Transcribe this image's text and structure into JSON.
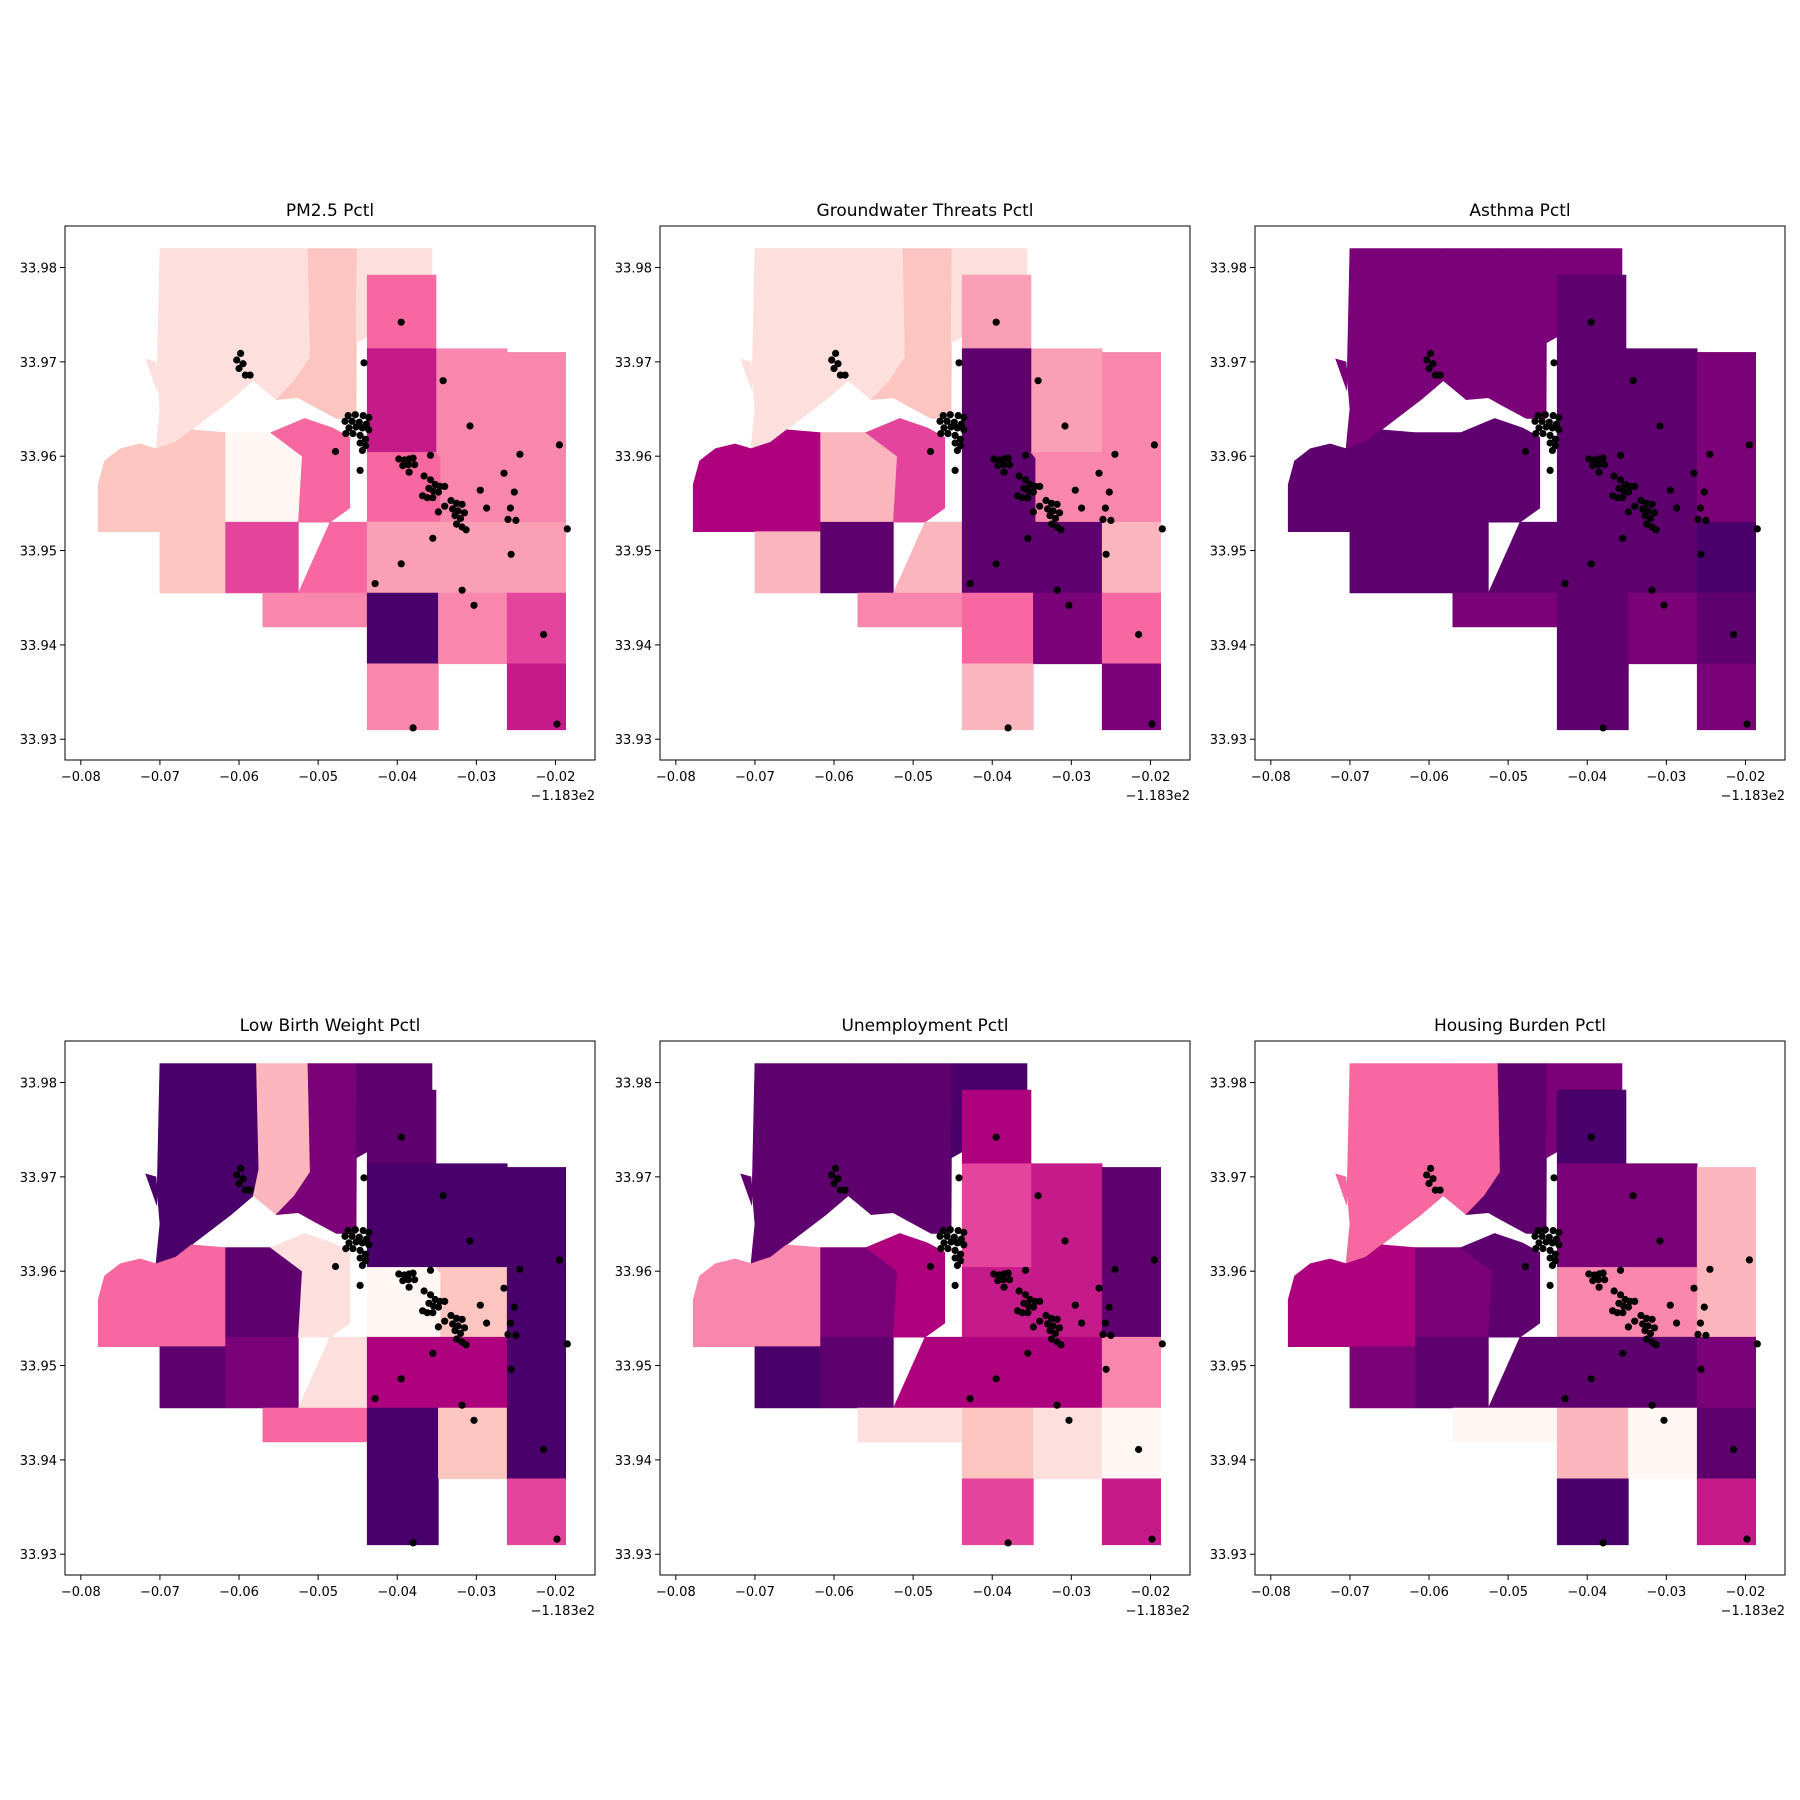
{
  "figure": {
    "panels": [
      {
        "id": "pm25",
        "title": "PM2.5 Pctl",
        "shades": [
          1,
          1,
          2,
          1,
          2,
          2,
          0,
          7,
          6,
          6,
          6,
          5,
          8,
          6,
          5,
          4,
          5,
          4,
          5,
          12,
          5,
          7,
          5,
          8
        ]
      },
      {
        "id": "groundwater",
        "title": "Groundwater Threats Pctl",
        "shades": [
          1,
          1,
          2,
          1,
          9,
          3,
          3,
          11,
          7,
          3,
          4,
          4,
          11,
          11,
          5,
          11,
          5,
          3,
          5,
          6,
          10,
          6,
          3,
          10
        ]
      },
      {
        "id": "asthma",
        "title": "Asthma Pctl",
        "shades": [
          10,
          10,
          10,
          10,
          11,
          11,
          11,
          11,
          11,
          11,
          11,
          11,
          11,
          11,
          11,
          11,
          10,
          12,
          10,
          11,
          10,
          11,
          11,
          10
        ]
      },
      {
        "id": "lowbirth",
        "title": "Low Birth Weight Pctl",
        "shades": [
          12,
          3,
          10,
          11,
          6,
          11,
          11,
          10,
          1,
          1,
          11,
          12,
          12,
          0,
          2,
          9,
          12,
          12,
          6,
          12,
          2,
          12,
          12,
          7
        ]
      },
      {
        "id": "unemployment",
        "title": "Unemployment Pctl",
        "shades": [
          11,
          11,
          11,
          12,
          5,
          12,
          10,
          11,
          9,
          9,
          9,
          8,
          7,
          8,
          8,
          9,
          11,
          5,
          1,
          2,
          1,
          0,
          7,
          8
        ]
      },
      {
        "id": "housing",
        "title": "Housing Burden Pctl",
        "shades": [
          6,
          6,
          11,
          10,
          9,
          10,
          10,
          11,
          11,
          11,
          12,
          10,
          10,
          5,
          5,
          11,
          3,
          10,
          0,
          3,
          0,
          11,
          12,
          8
        ]
      }
    ],
    "x_axis": {
      "ticks": [
        "−0.08",
        "−0.07",
        "−0.06",
        "−0.05",
        "−0.04",
        "−0.03",
        "−0.02"
      ],
      "offset_label": "−1.183e2"
    },
    "y_axis": {
      "ticks": [
        "33.98",
        "33.97",
        "33.96",
        "33.95",
        "33.94",
        "33.93"
      ]
    },
    "colormap": [
      "#fff7f3",
      "#fde0dd",
      "#fcc5c0",
      "#fbb5bc",
      "#fa9fb5",
      "#f987ad",
      "#f768a1",
      "#e4449c",
      "#c51b8a",
      "#ae017e",
      "#7a0177",
      "#5e006e",
      "#49006a"
    ],
    "marker_color": "#000000"
  },
  "chart_data": {
    "type": "choropleth-map",
    "titles": [
      "PM2.5 Pctl",
      "Groundwater Threats Pctl",
      "Asthma Pctl",
      "Low Birth Weight Pctl",
      "Unemployment Pctl",
      "Housing Burden Pctl"
    ],
    "x_offset": -118.3,
    "xlim": [
      -0.082,
      -0.015
    ],
    "ylim": [
      33.9278,
      33.9844
    ],
    "x_ticks": [
      -0.08,
      -0.07,
      -0.06,
      -0.05,
      -0.04,
      -0.03,
      -0.02
    ],
    "y_ticks": [
      33.98,
      33.97,
      33.96,
      33.95,
      33.94,
      33.93
    ],
    "points": [
      [
        -0.0395,
        33.9742
      ],
      [
        -0.0442,
        33.9699
      ],
      [
        -0.0342,
        33.968
      ],
      [
        -0.0308,
        33.9632
      ],
      [
        -0.0598,
        33.9709
      ],
      [
        -0.0603,
        33.9702
      ],
      [
        -0.0595,
        33.9698
      ],
      [
        -0.06,
        33.9693
      ],
      [
        -0.0592,
        33.9686
      ],
      [
        -0.0586,
        33.9686
      ],
      [
        -0.0462,
        33.9643
      ],
      [
        -0.0453,
        33.9644
      ],
      [
        -0.0443,
        33.9643
      ],
      [
        -0.0436,
        33.9641
      ],
      [
        -0.0466,
        33.9637
      ],
      [
        -0.0457,
        33.9637
      ],
      [
        -0.0448,
        33.9636
      ],
      [
        -0.0439,
        33.9634
      ],
      [
        -0.0461,
        33.963
      ],
      [
        -0.0452,
        33.9631
      ],
      [
        -0.0444,
        33.963
      ],
      [
        -0.0436,
        33.9628
      ],
      [
        -0.0465,
        33.9624
      ],
      [
        -0.0456,
        33.9624
      ],
      [
        -0.0447,
        33.9622
      ],
      [
        -0.044,
        33.9618
      ],
      [
        -0.0447,
        33.9614
      ],
      [
        -0.044,
        33.9611
      ],
      [
        -0.0444,
        33.9606
      ],
      [
        -0.0478,
        33.9605
      ],
      [
        -0.0398,
        33.9597
      ],
      [
        -0.0391,
        33.9596
      ],
      [
        -0.0385,
        33.9597
      ],
      [
        -0.038,
        33.9598
      ],
      [
        -0.0393,
        33.959
      ],
      [
        -0.0386,
        33.9591
      ],
      [
        -0.0378,
        33.9591
      ],
      [
        -0.0447,
        33.9585
      ],
      [
        -0.0385,
        33.9583
      ],
      [
        -0.0358,
        33.9601
      ],
      [
        -0.0366,
        33.9579
      ],
      [
        -0.0358,
        33.9575
      ],
      [
        -0.0352,
        33.957
      ],
      [
        -0.0346,
        33.9568
      ],
      [
        -0.034,
        33.9568
      ],
      [
        -0.036,
        33.9566
      ],
      [
        -0.0354,
        33.9563
      ],
      [
        -0.0348,
        33.9562
      ],
      [
        -0.0368,
        33.9558
      ],
      [
        -0.0362,
        33.9556
      ],
      [
        -0.0355,
        33.9556
      ],
      [
        -0.0332,
        33.9553
      ],
      [
        -0.0325,
        33.955
      ],
      [
        -0.0318,
        33.9549
      ],
      [
        -0.034,
        33.9547
      ],
      [
        -0.033,
        33.9544
      ],
      [
        -0.0323,
        33.9542
      ],
      [
        -0.0315,
        33.954
      ],
      [
        -0.0327,
        33.9537
      ],
      [
        -0.032,
        33.9534
      ],
      [
        -0.0348,
        33.9541
      ],
      [
        -0.0325,
        33.9528
      ],
      [
        -0.0318,
        33.9525
      ],
      [
        -0.0313,
        33.9522
      ],
      [
        -0.0355,
        33.9513
      ],
      [
        -0.0295,
        33.9564
      ],
      [
        -0.0287,
        33.9545
      ],
      [
        -0.0252,
        33.9562
      ],
      [
        -0.0265,
        33.9582
      ],
      [
        -0.0245,
        33.9602
      ],
      [
        -0.0257,
        33.9545
      ],
      [
        -0.025,
        33.9532
      ],
      [
        -0.026,
        33.9533
      ],
      [
        -0.0195,
        33.9612
      ],
      [
        -0.0185,
        33.9523
      ],
      [
        -0.0256,
        33.9496
      ],
      [
        -0.0395,
        33.9486
      ],
      [
        -0.0428,
        33.9465
      ],
      [
        -0.0318,
        33.9458
      ],
      [
        -0.0303,
        33.9442
      ],
      [
        -0.0215,
        33.9411
      ],
      [
        -0.038,
        33.9312
      ],
      [
        -0.0198,
        33.9316
      ]
    ]
  }
}
